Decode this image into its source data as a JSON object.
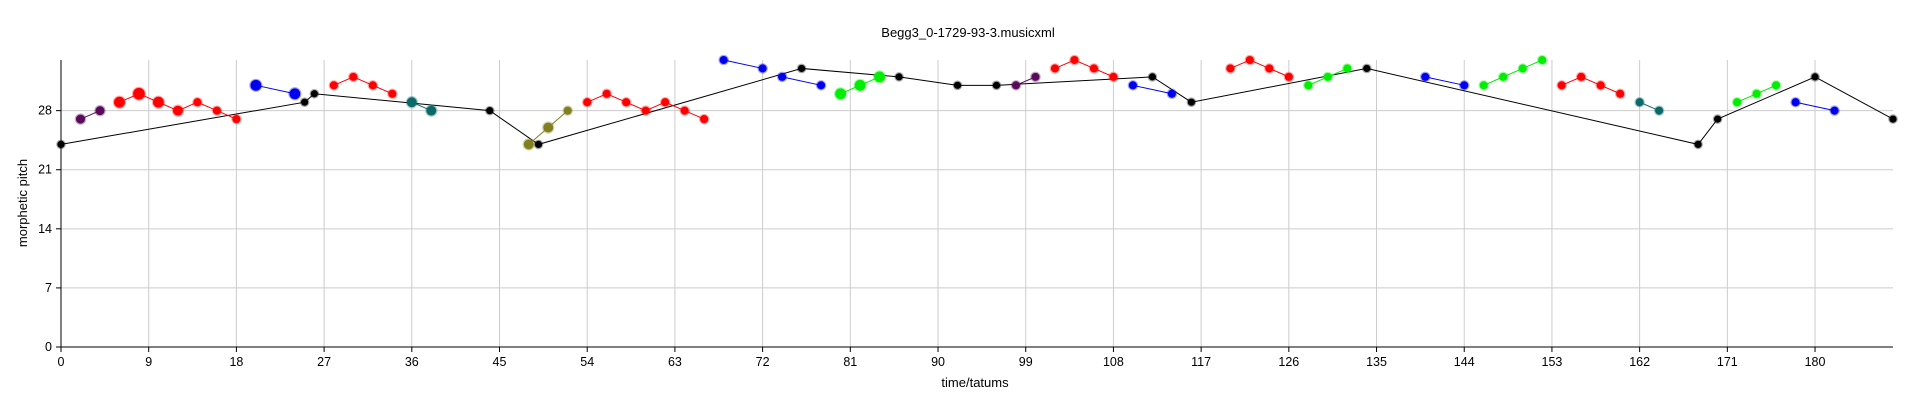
{
  "chart_data": {
    "type": "scatter",
    "title": "Begg3_0-1729-93-3.musicxml",
    "xlabel": "time/tatums",
    "ylabel": "morphetic pitch",
    "xlim": [
      0,
      188
    ],
    "ylim": [
      0,
      34
    ],
    "xticks": [
      "0",
      "9",
      "18",
      "27",
      "36",
      "45",
      "54",
      "63",
      "72",
      "81",
      "90",
      "99",
      "108",
      "117",
      "126",
      "135",
      "144",
      "153",
      "162",
      "171",
      "180"
    ],
    "yticks": [
      "0",
      "7",
      "14",
      "21",
      "28"
    ],
    "grid": true,
    "colors": {
      "black": "#000000",
      "red": "#ff0000",
      "blue": "#0000ee",
      "green": "#00ee00",
      "purple": "#5a0a5a",
      "teal": "#0a6a6a",
      "olive": "#808020",
      "grid": "#cccccc"
    },
    "series": [
      {
        "color": "black",
        "points": [
          [
            0,
            24,
            0.8
          ],
          [
            25,
            29,
            0.8
          ],
          [
            26,
            30,
            0.8
          ],
          [
            44,
            28,
            0.8
          ],
          [
            49,
            24,
            0.8
          ],
          [
            76,
            33,
            0.8
          ],
          [
            86,
            32,
            0.8
          ],
          [
            92,
            31,
            0.8
          ],
          [
            96,
            31,
            0.8
          ],
          [
            112,
            32,
            0.8
          ],
          [
            116,
            29,
            0.8
          ],
          [
            134,
            33,
            0.8
          ],
          [
            168,
            24,
            0.8
          ],
          [
            170,
            27,
            0.8
          ],
          [
            180,
            32,
            0.8
          ],
          [
            188,
            27,
            0.8
          ]
        ]
      },
      {
        "color": "purple",
        "points": [
          [
            2,
            27,
            1
          ],
          [
            4,
            28,
            1
          ]
        ]
      },
      {
        "color": "red",
        "points": [
          [
            6,
            29,
            1.2
          ],
          [
            8,
            30,
            1.3
          ],
          [
            10,
            29,
            1.2
          ],
          [
            12,
            28,
            1.1
          ],
          [
            14,
            29,
            0.9
          ],
          [
            16,
            28,
            0.9
          ],
          [
            18,
            27,
            0.9
          ]
        ]
      },
      {
        "color": "blue",
        "points": [
          [
            20,
            31,
            1.2
          ],
          [
            24,
            30,
            1.2
          ]
        ]
      },
      {
        "color": "red",
        "points": [
          [
            28,
            31,
            0.9
          ],
          [
            30,
            32,
            0.9
          ],
          [
            32,
            31,
            0.9
          ],
          [
            34,
            30,
            0.9
          ]
        ]
      },
      {
        "color": "teal",
        "points": [
          [
            36,
            29,
            1.1
          ],
          [
            38,
            28,
            1.1
          ]
        ]
      },
      {
        "color": "olive",
        "points": [
          [
            48,
            24,
            1.1
          ],
          [
            50,
            26,
            1.1
          ],
          [
            52,
            28,
            0.9
          ]
        ]
      },
      {
        "color": "red",
        "points": [
          [
            54,
            29,
            0.9
          ],
          [
            56,
            30,
            0.9
          ],
          [
            58,
            29,
            0.9
          ],
          [
            60,
            28,
            0.9
          ],
          [
            62,
            29,
            0.9
          ],
          [
            64,
            28,
            0.9
          ],
          [
            66,
            27,
            0.9
          ]
        ]
      },
      {
        "color": "blue",
        "points": [
          [
            68,
            34,
            0.9
          ],
          [
            72,
            33,
            0.9
          ]
        ]
      },
      {
        "color": "blue",
        "points": [
          [
            74,
            32,
            0.9
          ],
          [
            78,
            31,
            0.9
          ]
        ]
      },
      {
        "color": "green",
        "points": [
          [
            80,
            30,
            1.2
          ],
          [
            82,
            31,
            1.2
          ],
          [
            84,
            32,
            1.2
          ]
        ]
      },
      {
        "color": "purple",
        "points": [
          [
            98,
            31,
            0.9
          ],
          [
            100,
            32,
            0.9
          ]
        ]
      },
      {
        "color": "red",
        "points": [
          [
            102,
            33,
            0.9
          ],
          [
            104,
            34,
            0.9
          ],
          [
            106,
            33,
            0.9
          ],
          [
            108,
            32,
            0.9
          ]
        ]
      },
      {
        "color": "blue",
        "points": [
          [
            110,
            31,
            0.9
          ],
          [
            114,
            30,
            0.9
          ]
        ]
      },
      {
        "color": "red",
        "points": [
          [
            120,
            33,
            0.9
          ],
          [
            122,
            34,
            0.9
          ],
          [
            124,
            33,
            0.9
          ],
          [
            126,
            32,
            0.9
          ]
        ]
      },
      {
        "color": "green",
        "points": [
          [
            128,
            31,
            0.9
          ],
          [
            130,
            32,
            0.9
          ],
          [
            132,
            33,
            0.9
          ]
        ]
      },
      {
        "color": "blue",
        "points": [
          [
            140,
            32,
            0.9
          ],
          [
            144,
            31,
            0.9
          ]
        ]
      },
      {
        "color": "green",
        "points": [
          [
            146,
            31,
            0.9
          ],
          [
            148,
            32,
            0.9
          ],
          [
            150,
            33,
            0.9
          ],
          [
            152,
            34,
            0.9
          ]
        ]
      },
      {
        "color": "red",
        "points": [
          [
            154,
            31,
            0.9
          ],
          [
            156,
            32,
            0.9
          ],
          [
            158,
            31,
            0.9
          ],
          [
            160,
            30,
            0.9
          ]
        ]
      },
      {
        "color": "teal",
        "points": [
          [
            162,
            29,
            0.9
          ],
          [
            164,
            28,
            0.9
          ]
        ]
      },
      {
        "color": "green",
        "points": [
          [
            172,
            29,
            0.9
          ],
          [
            174,
            30,
            0.9
          ],
          [
            176,
            31,
            0.9
          ]
        ]
      },
      {
        "color": "blue",
        "points": [
          [
            178,
            29,
            0.9
          ],
          [
            182,
            28,
            0.9
          ]
        ]
      }
    ]
  }
}
